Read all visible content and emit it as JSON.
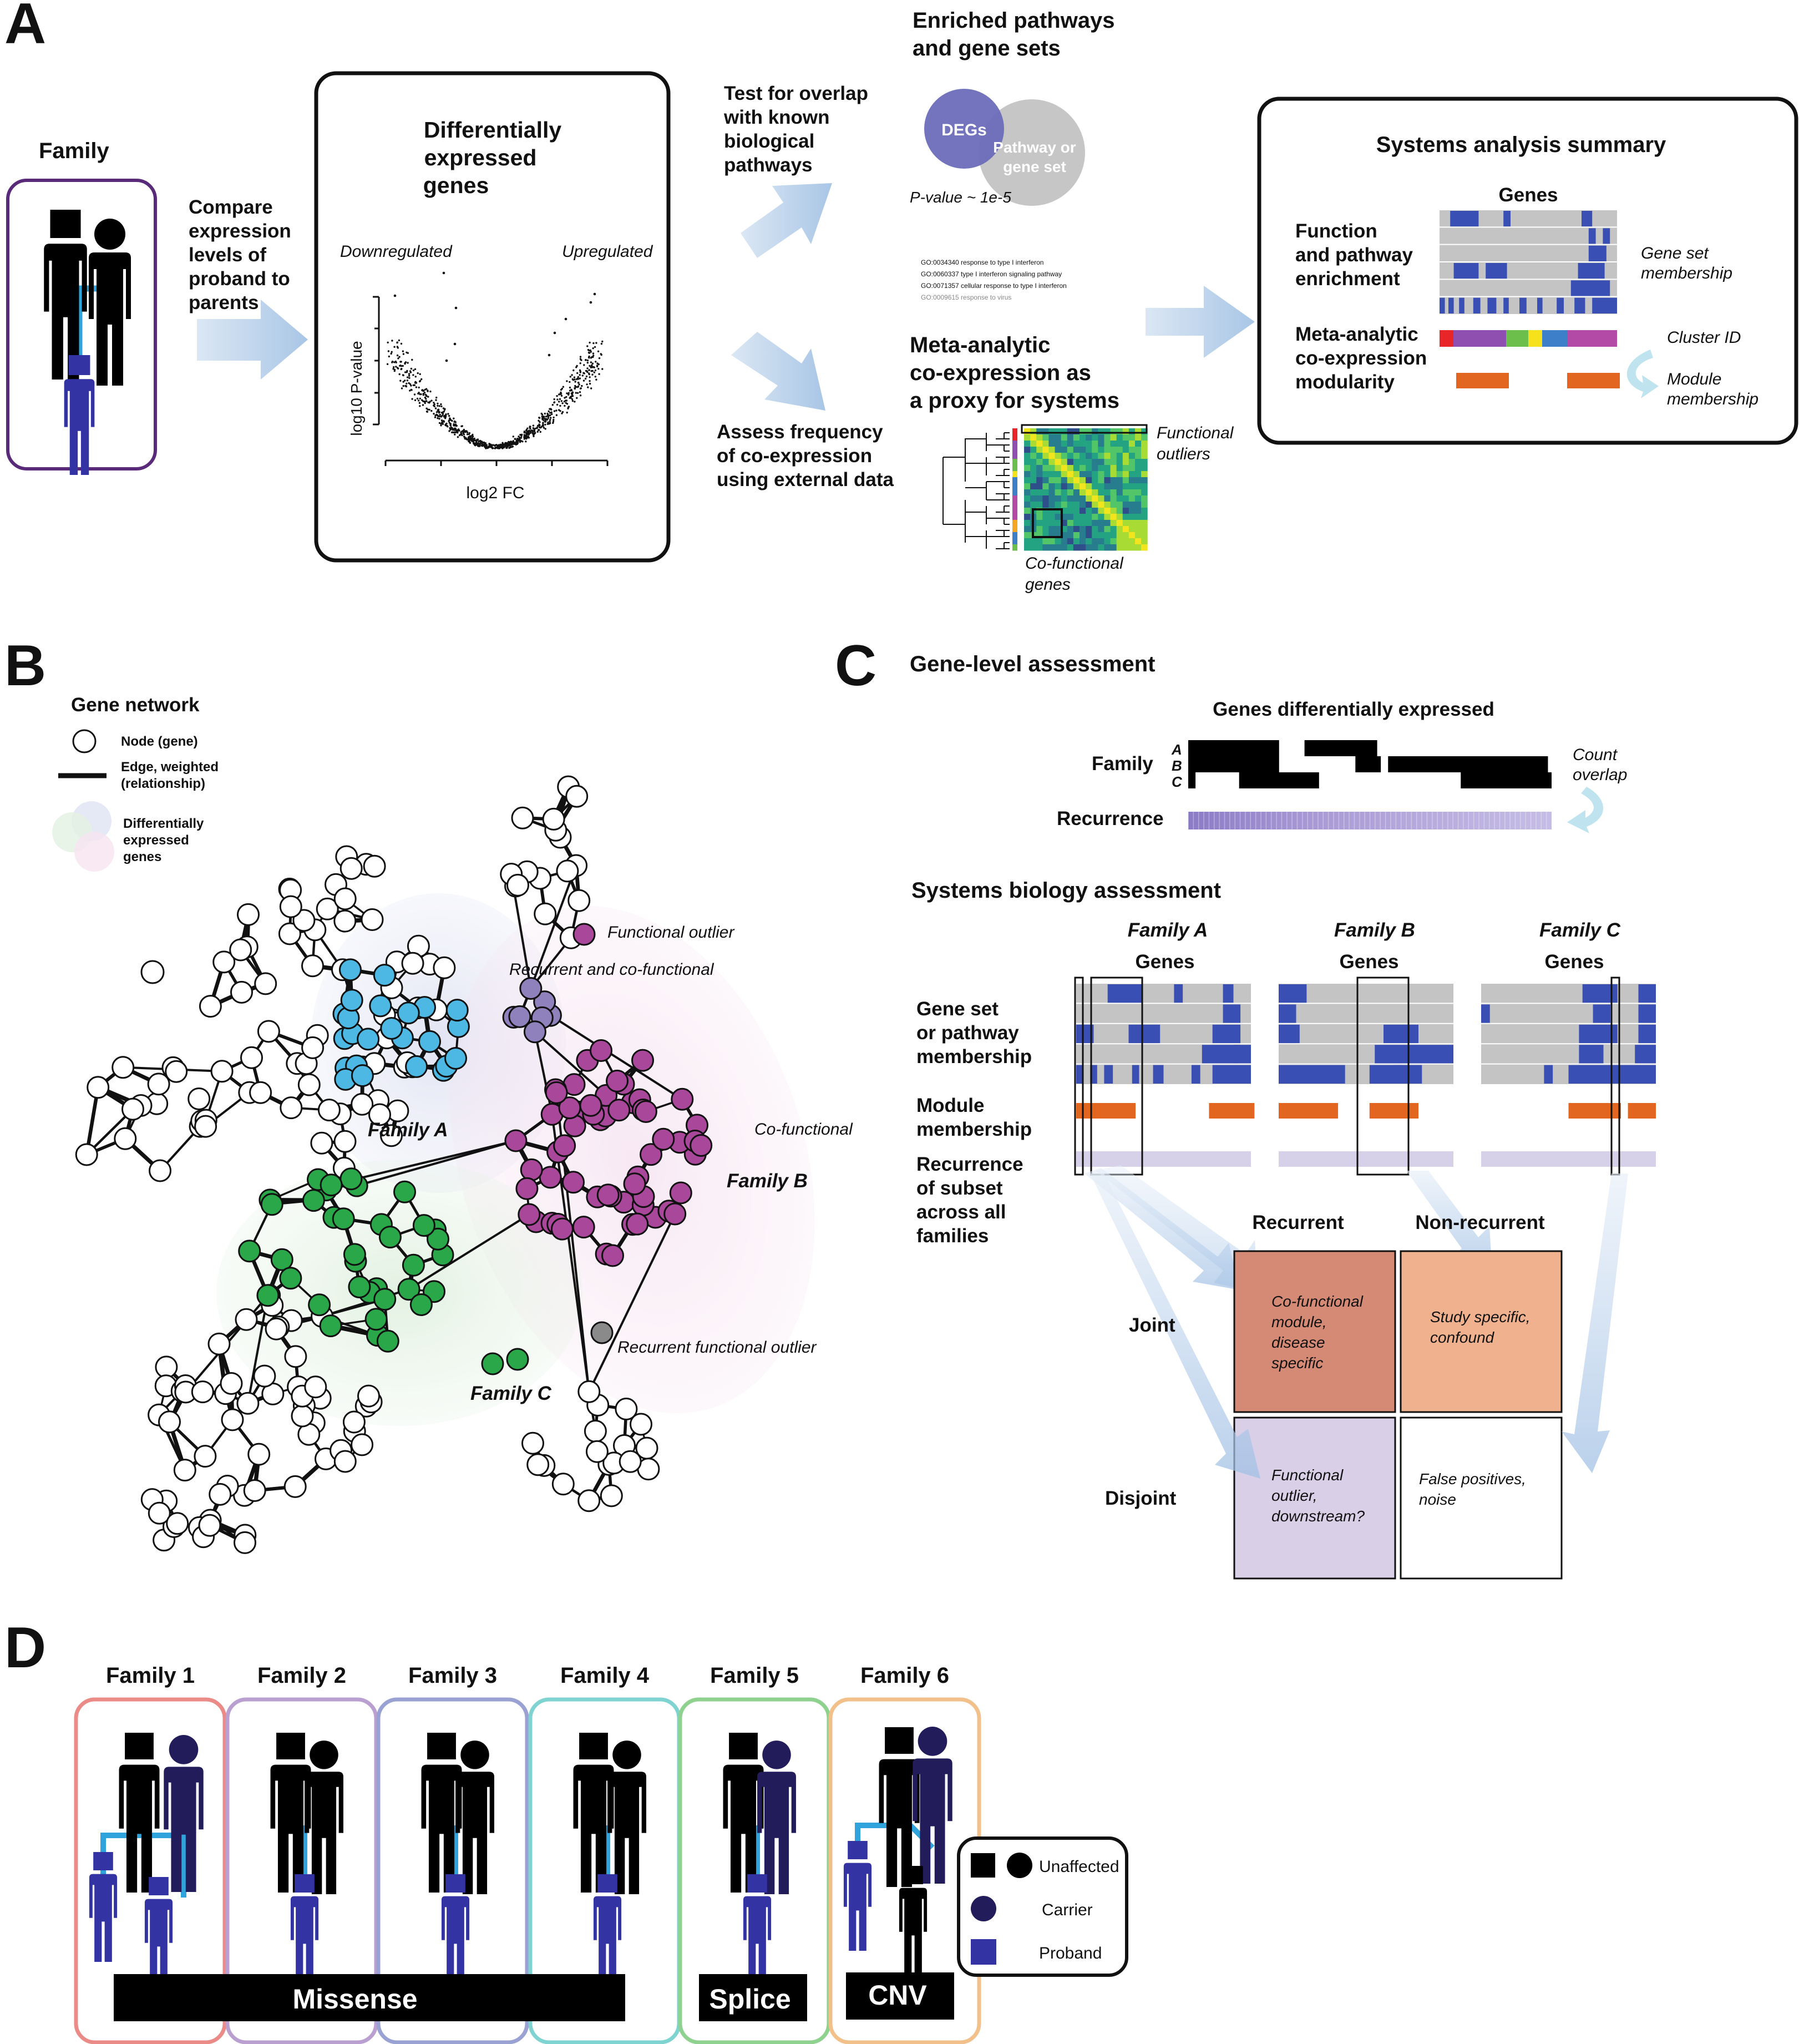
{
  "panels": {
    "A": "A",
    "B": "B",
    "C": "C",
    "D": "D"
  },
  "panel_a": {
    "family_title": "Family",
    "compare_text": [
      "Compare",
      "expression",
      "levels of",
      "proband to",
      "parents"
    ],
    "deg_box": {
      "title": [
        "Differentially",
        "expressed",
        "genes"
      ],
      "down_label": "Downregulated",
      "up_label": "Upregulated",
      "ylabel": "log10 P-value",
      "xlabel": "log2 FC"
    },
    "test_overlap": [
      "Test for overlap",
      "with known",
      "biological",
      "pathways"
    ],
    "enriched_title": [
      "Enriched pathways",
      "and gene sets"
    ],
    "venn": {
      "left": "DEGs",
      "right": [
        "Pathway or",
        "gene set"
      ],
      "pvalue": "P-value ~ 1e-5"
    },
    "go_terms": [
      "GO:0034340  response to type I interferon",
      "GO:0060337  type I interferon signaling pathway",
      "GO:0071357  cellular response to type I interferon",
      "GO:0009615  response to virus"
    ],
    "assess_text": [
      "Assess frequency",
      "of co-expression",
      "using external data"
    ],
    "meta_title": [
      "Meta-analytic",
      "co-expression as",
      "a proxy for systems"
    ],
    "functional_outliers": [
      "Functional",
      "outliers"
    ],
    "cofunctional_genes": [
      "Co-functional",
      "genes"
    ],
    "summary": {
      "title": "Systems analysis summary",
      "genes": "Genes",
      "function_label": [
        "Function",
        "and pathway",
        "enrichment"
      ],
      "gene_set_membership": [
        "Gene set",
        "membership"
      ],
      "meta_label": [
        "Meta-analytic",
        "co-expression",
        "modularity"
      ],
      "cluster_id": "Cluster ID",
      "module_membership": [
        "Module",
        "membership"
      ],
      "cluster_colors": [
        "#e8262a",
        "#8e4fb0",
        "#6cbf4a",
        "#f5e11c",
        "#3d7fc8",
        "#b34aa6"
      ]
    }
  },
  "panel_b": {
    "title": "Gene network",
    "legend": {
      "node": "Node (gene)",
      "edge": [
        "Edge, weighted",
        "(relationship)"
      ],
      "deg": [
        "Differentially",
        "expressed",
        "genes"
      ]
    },
    "labels": {
      "functional_outlier": "Functional outlier",
      "recurrent_cofunctional": "Recurrent and co-functional",
      "cofunctional": "Co-functional",
      "recurrent_functional_outlier": "Recurrent functional outlier",
      "family_a": "Family A",
      "family_b": "Family B",
      "family_c": "Family C"
    },
    "colors": {
      "a": "#4db8e3",
      "b": "#a9489a",
      "c": "#2aa748",
      "ab": "#8f82bc",
      "outlier": "#8a8a8a"
    }
  },
  "panel_c": {
    "title": "Gene-level assessment",
    "degs_title": "Genes differentially expressed",
    "family": "Family",
    "rows": [
      "A",
      "B",
      "C"
    ],
    "count_overlap": [
      "Count",
      "overlap"
    ],
    "recurrence": "Recurrence",
    "systems_title": "Systems biology assessment",
    "families": [
      "Family A",
      "Family B",
      "Family C"
    ],
    "genes": "Genes",
    "gene_set_label": [
      "Gene set",
      "or pathway",
      "membership"
    ],
    "module_label": [
      "Module",
      "membership"
    ],
    "recurrence_label": [
      "Recurrence",
      "of subset",
      "across all",
      "families"
    ],
    "col_recurrent": "Recurrent",
    "col_nonrecurrent": "Non-recurrent",
    "row_joint": "Joint",
    "row_disjoint": "Disjoint",
    "cells": {
      "joint_recurrent": [
        "Co-functional",
        "module,",
        "disease",
        "specific"
      ],
      "joint_nonrecurrent": [
        "Study specific,",
        "confound"
      ],
      "disjoint_recurrent": [
        "Functional",
        "outlier,",
        "downstream?"
      ],
      "disjoint_nonrecurrent": [
        "False positives,",
        "noise"
      ]
    }
  },
  "panel_d": {
    "families": [
      "Family 1",
      "Family 2",
      "Family 3",
      "Family 4",
      "Family 5",
      "Family 6"
    ],
    "family_colors": [
      "#ea8b87",
      "#b9a0d0",
      "#9aa2d3",
      "#7fd3d1",
      "#8fd28f",
      "#f2c08a"
    ],
    "variants": [
      "Missense",
      "Splice",
      "CNV"
    ],
    "legend": {
      "unaffected": "Unaffected",
      "carrier": "Carrier",
      "proband": "Proband"
    },
    "colors": {
      "unaffected": "#000000",
      "carrier": "#221c5a",
      "proband": "#3333a3",
      "link": "#2fa3dc"
    }
  }
}
